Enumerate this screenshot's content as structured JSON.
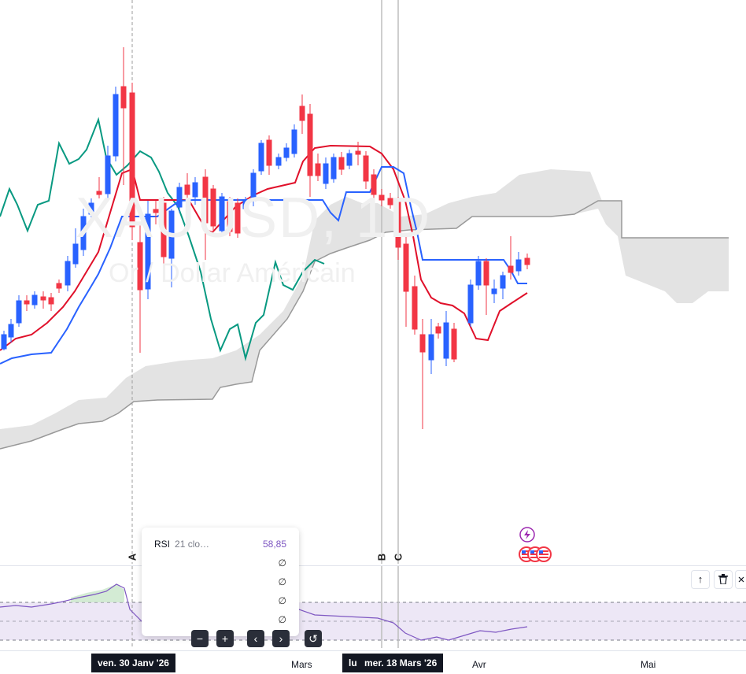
{
  "watermark": {
    "symbol": "XAUUSD, 1D",
    "name": "Or / Dollar Américain"
  },
  "markers": [
    {
      "label": "A"
    },
    {
      "label": "B"
    },
    {
      "label": "C"
    }
  ],
  "rsi_tooltip": {
    "name": "RSI",
    "args": "21 clo…",
    "value": "58,85",
    "empty_values": [
      "∅",
      "∅",
      "∅",
      "∅"
    ]
  },
  "zoom_toolbar": {
    "minus": "−",
    "plus": "+",
    "left": "‹",
    "right": "›",
    "reset": "↺"
  },
  "pane_controls": {
    "up": "↑",
    "delete": "trash-icon",
    "more": "chevron-icon"
  },
  "time_axis": {
    "highlight_left": "ven. 30 Janv '26",
    "highlight_right_prefix": "lu",
    "highlight_right": "mer. 18 Mars '26",
    "ticks": [
      "Mars",
      "Avr",
      "Mai"
    ]
  },
  "colors": {
    "bull": "#2962ff",
    "bear": "#f23645",
    "tenkan": "#2962ff",
    "kijun": "#e0102a",
    "chikou": "#089981",
    "cloud": "#e0e0e0",
    "rsi": "#7e57c2",
    "rsi_band": "#ede7f6",
    "event_icon": "#9c27b0"
  }
}
